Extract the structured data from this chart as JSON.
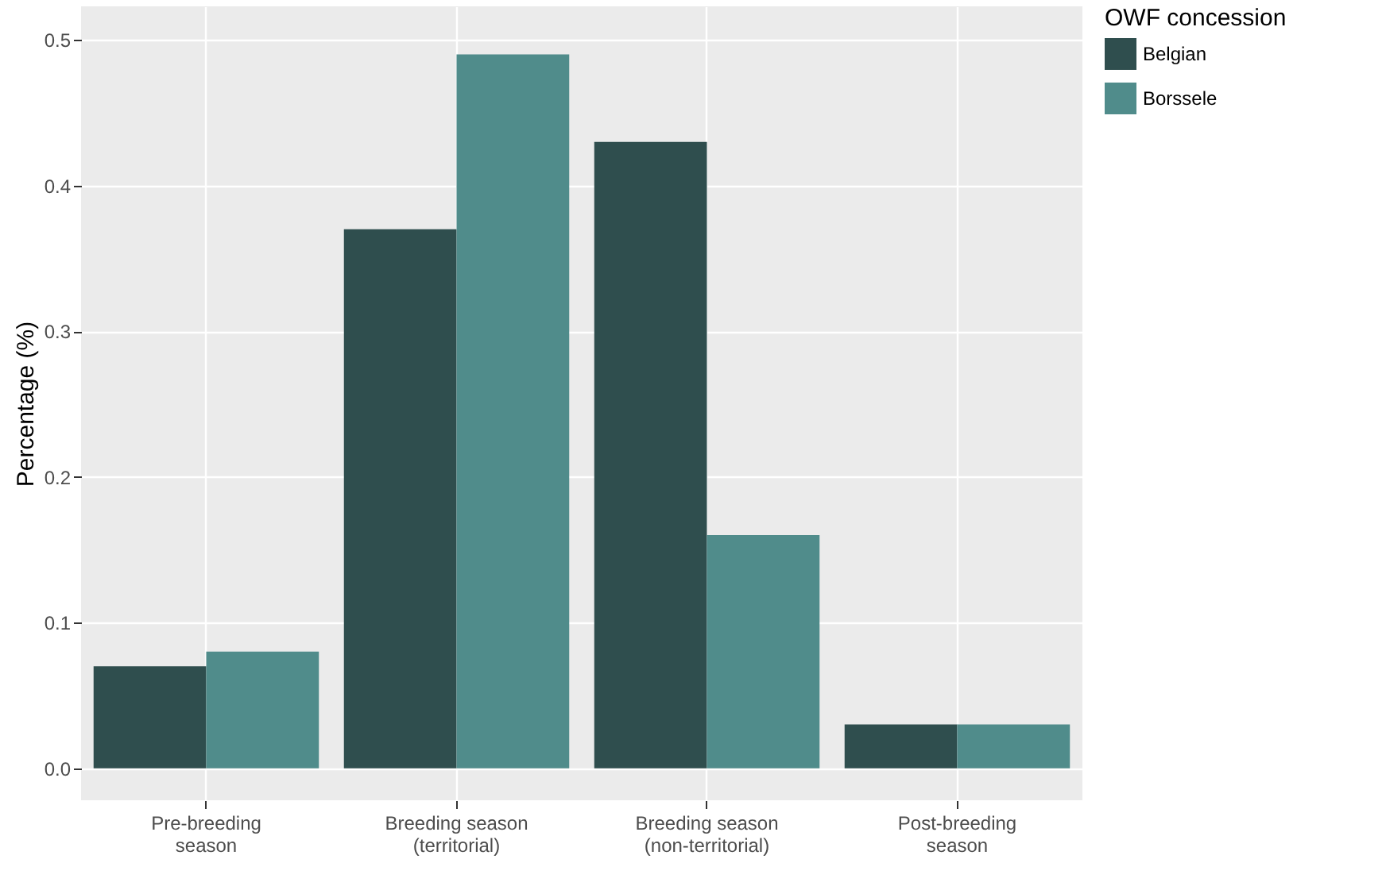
{
  "chart_data": {
    "type": "bar",
    "ylabel": "Percentage (%)",
    "legend_title": "OWF concession",
    "categories": [
      "Pre-breeding season",
      "Breeding season (territorial)",
      "Breeding season (non-territorial)",
      "Post-breeding season"
    ],
    "series": [
      {
        "name": "Belgian",
        "color": "#2f4e4e",
        "values": [
          0.07,
          0.37,
          0.43,
          0.03
        ]
      },
      {
        "name": "Borssele",
        "color": "#508c8b",
        "values": [
          0.08,
          0.49,
          0.16,
          0.03
        ]
      }
    ],
    "ylim": [
      -0.022,
      0.523
    ],
    "yticks": [
      {
        "value": 0,
        "label": "0.0"
      },
      0.1,
      0.2,
      0.3,
      0.4,
      0.5
    ],
    "grid": true,
    "legend": "right"
  }
}
